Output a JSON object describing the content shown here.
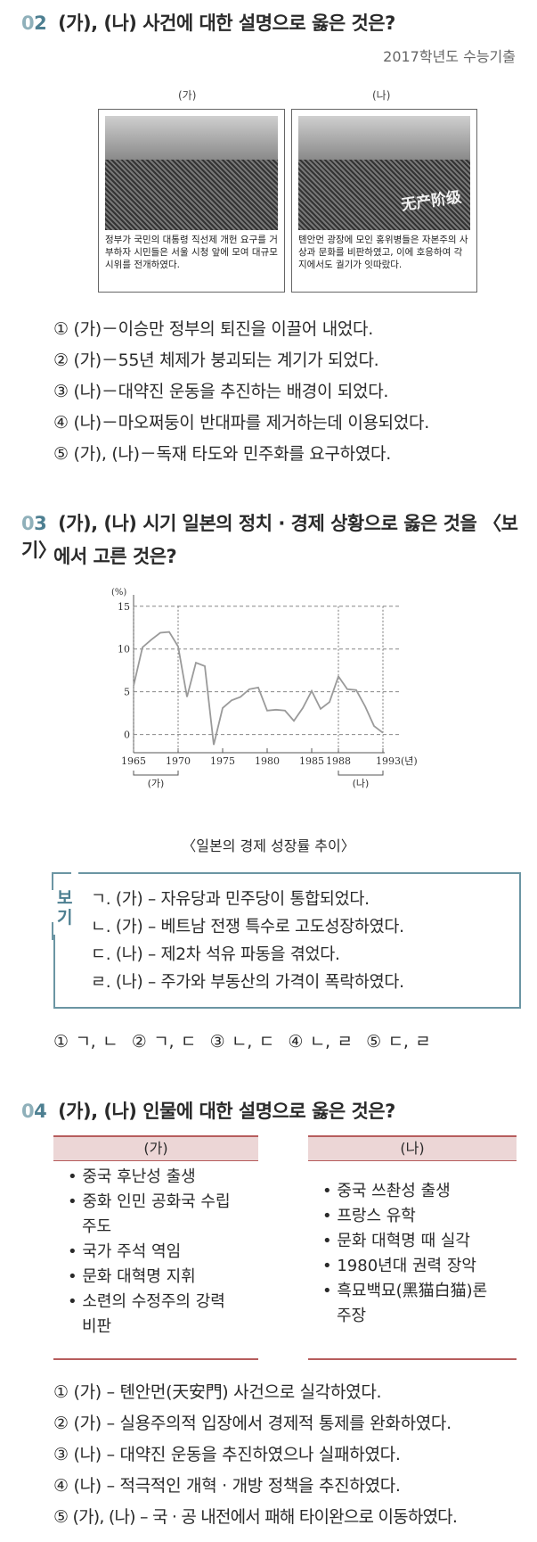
{
  "q02": {
    "num_a": "0",
    "num_b": "2",
    "title": "(가), (나) 사건에 대한 설명으로 옳은 것은?",
    "source": "2017학년도 수능기출",
    "left_label": "(가)",
    "right_label": "(나)",
    "left_caption": "정부가 국민의 대통령 직선제 개헌 요구를 거부하자 시민들은 서울 시청 앞에 모여 대규모 시위를 전개하였다.",
    "right_caption": "톈안먼 광장에 모인 홍위병들은 자본주의 사상과 문화를 비판하였고, 이에 호응하여 각지에서도 궐기가 잇따랐다.",
    "right_photo_banner": "无产阶级",
    "choices": [
      "① (가)－이승만 정부의 퇴진을 이끌어 내었다.",
      "② (가)－55년 체제가 붕괴되는 계기가 되었다.",
      "③ (나)－대약진 운동을 추진하는 배경이 되었다.",
      "④ (나)－마오쩌둥이 반대파를 제거하는데 이용되었다.",
      "⑤ (가), (나)－독재 타도와 민주화를 요구하였다."
    ]
  },
  "q03": {
    "num_a": "0",
    "num_b": "3",
    "title_line1": "(가), (나) 시기 일본의 정치 · 경제 상황으로 옳은 것을 〈보기〉",
    "title_line2": "에서 고른 것은?",
    "chart_caption": "〈일본의 경제 성장률 추이〉",
    "bogi_label_1": "보",
    "bogi_label_2": "기",
    "bogi_items": [
      "ㄱ. (가) – 자유당과 민주당이 통합되었다.",
      "ㄴ. (가) – 베트남 전쟁 특수로 고도성장하였다.",
      "ㄷ. (나) – 제2차 석유 파동을 겪었다.",
      "ㄹ. (나) – 주가와 부동산의 가격이 폭락하였다."
    ],
    "answer_line": "① ㄱ, ㄴ  ② ㄱ, ㄷ  ③ ㄴ, ㄷ  ④ ㄴ, ㄹ  ⑤ ㄷ, ㄹ"
  },
  "chart_data": {
    "type": "line",
    "title": "〈일본의 경제 성장률 추이〉",
    "ylabel": "(%)",
    "xlabel": "",
    "y_ticks": [
      "0",
      "5",
      "10",
      "15"
    ],
    "x_ticks": [
      "1965",
      "1970",
      "1975",
      "1980",
      "1985",
      "1988",
      "1993(년)"
    ],
    "ylim": [
      -1.5,
      15.5
    ],
    "xlim": [
      1965,
      1993
    ],
    "grid": "horizontal dashed",
    "period_labels": [
      "(가)",
      "(나)"
    ],
    "periods": [
      [
        1965,
        1970
      ],
      [
        1988,
        1993
      ]
    ],
    "series": [
      {
        "x": [
          1965,
          1966,
          1967,
          1968,
          1969,
          1970,
          1971,
          1972,
          1973,
          1974,
          1975,
          1976,
          1977,
          1978,
          1979,
          1980,
          1981,
          1982,
          1983,
          1984,
          1985,
          1986,
          1987,
          1988,
          1989,
          1990,
          1991,
          1992,
          1993
        ],
        "values": [
          5.7,
          10.2,
          11.1,
          11.9,
          12.0,
          10.3,
          4.4,
          8.4,
          8.0,
          -1.2,
          3.1,
          4.0,
          4.4,
          5.3,
          5.5,
          2.8,
          2.9,
          2.8,
          1.6,
          3.1,
          5.1,
          3.0,
          3.8,
          6.8,
          5.3,
          5.2,
          3.3,
          1.0,
          0.2
        ]
      }
    ]
  },
  "q04": {
    "num_a": "0",
    "num_b": "4",
    "title": "(가), (나) 인물에 대한 설명으로 옳은 것은?",
    "left_head": "(가)",
    "right_head": "(나)",
    "left_items": [
      "• 중국 후난성 출생",
      "• 중화 인민 공화국 수립",
      "주도",
      "• 국가 주석 역임",
      "• 문화 대혁명 지휘",
      "• 소련의 수정주의 강력",
      "비판"
    ],
    "right_items": [
      "• 중국 쓰촨성 출생",
      "• 프랑스 유학",
      "• 문화 대혁명 때 실각",
      "• 1980년대 권력 장악",
      "• 흑묘백묘(黑猫白猫)론",
      "주장"
    ],
    "choices": [
      "① (가) – 톈안먼(天安門) 사건으로 실각하였다.",
      "② (가) – 실용주의적 입장에서 경제적 통제를 완화하였다.",
      "③ (나) – 대약진 운동을 추진하였으나 실패하였다.",
      "④ (나) – 적극적인 개혁 · 개방 정책을 추진하였다.",
      "⑤ (가), (나) – 국 · 공 내전에서 패해 타이완으로 이동하였다."
    ]
  }
}
